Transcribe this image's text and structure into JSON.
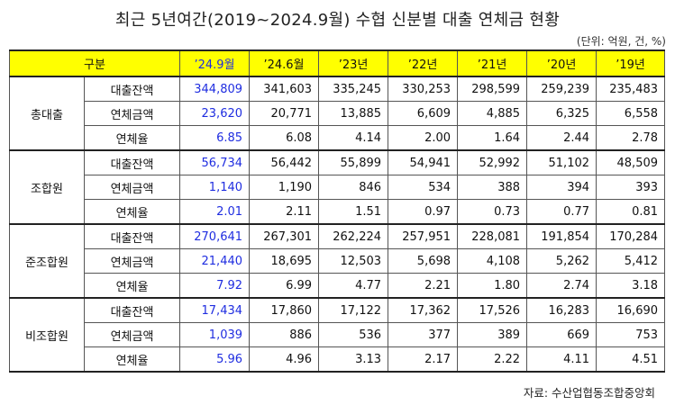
{
  "title": "최근 5년여간(2019~2024.9월) 수협 신분별 대출 연체금 현황",
  "unit": "(단위: 억원, 건, %)",
  "header": {
    "category": "구분",
    "periods": [
      "’24.9월",
      "’24.6월",
      "’23년",
      "’22년",
      "’21년",
      "’20년",
      "’19년"
    ]
  },
  "groups": [
    {
      "name": "총대출",
      "rows": [
        {
          "label": "대출잔액",
          "values": [
            "344,809",
            "341,603",
            "335,245",
            "330,253",
            "298,599",
            "259,239",
            "235,483"
          ]
        },
        {
          "label": "연체금액",
          "values": [
            "23,620",
            "20,771",
            "13,885",
            "6,609",
            "4,885",
            "6,325",
            "6,558"
          ]
        },
        {
          "label": "연체율",
          "values": [
            "6.85",
            "6.08",
            "4.14",
            "2.00",
            "1.64",
            "2.44",
            "2.78"
          ]
        }
      ]
    },
    {
      "name": "조합원",
      "rows": [
        {
          "label": "대출잔액",
          "values": [
            "56,734",
            "56,442",
            "55,899",
            "54,941",
            "52,992",
            "51,102",
            "48,509"
          ]
        },
        {
          "label": "연체금액",
          "values": [
            "1,140",
            "1,190",
            "846",
            "534",
            "388",
            "394",
            "393"
          ]
        },
        {
          "label": "연체율",
          "values": [
            "2.01",
            "2.11",
            "1.51",
            "0.97",
            "0.73",
            "0.77",
            "0.81"
          ]
        }
      ]
    },
    {
      "name": "준조합원",
      "rows": [
        {
          "label": "대출잔액",
          "values": [
            "270,641",
            "267,301",
            "262,224",
            "257,951",
            "228,081",
            "191,854",
            "170,284"
          ]
        },
        {
          "label": "연체금액",
          "values": [
            "21,440",
            "18,695",
            "12,503",
            "5,698",
            "4,108",
            "5,262",
            "5,412"
          ]
        },
        {
          "label": "연체율",
          "values": [
            "7.92",
            "6.99",
            "4.77",
            "2.21",
            "1.80",
            "2.74",
            "3.18"
          ]
        }
      ]
    },
    {
      "name": "비조합원",
      "rows": [
        {
          "label": "대출잔액",
          "values": [
            "17,434",
            "17,860",
            "17,122",
            "17,362",
            "17,526",
            "16,283",
            "16,690"
          ]
        },
        {
          "label": "연체금액",
          "values": [
            "1,039",
            "886",
            "536",
            "377",
            "389",
            "669",
            "753"
          ]
        },
        {
          "label": "연체율",
          "values": [
            "5.96",
            "4.96",
            "3.13",
            "2.17",
            "2.22",
            "4.11",
            "4.51"
          ]
        }
      ]
    }
  ],
  "source": "자료: 수산업협동조합중앙회",
  "colors": {
    "header_bg": "#ffff00",
    "highlight_text": "#1f2de0",
    "border": "#555555"
  }
}
